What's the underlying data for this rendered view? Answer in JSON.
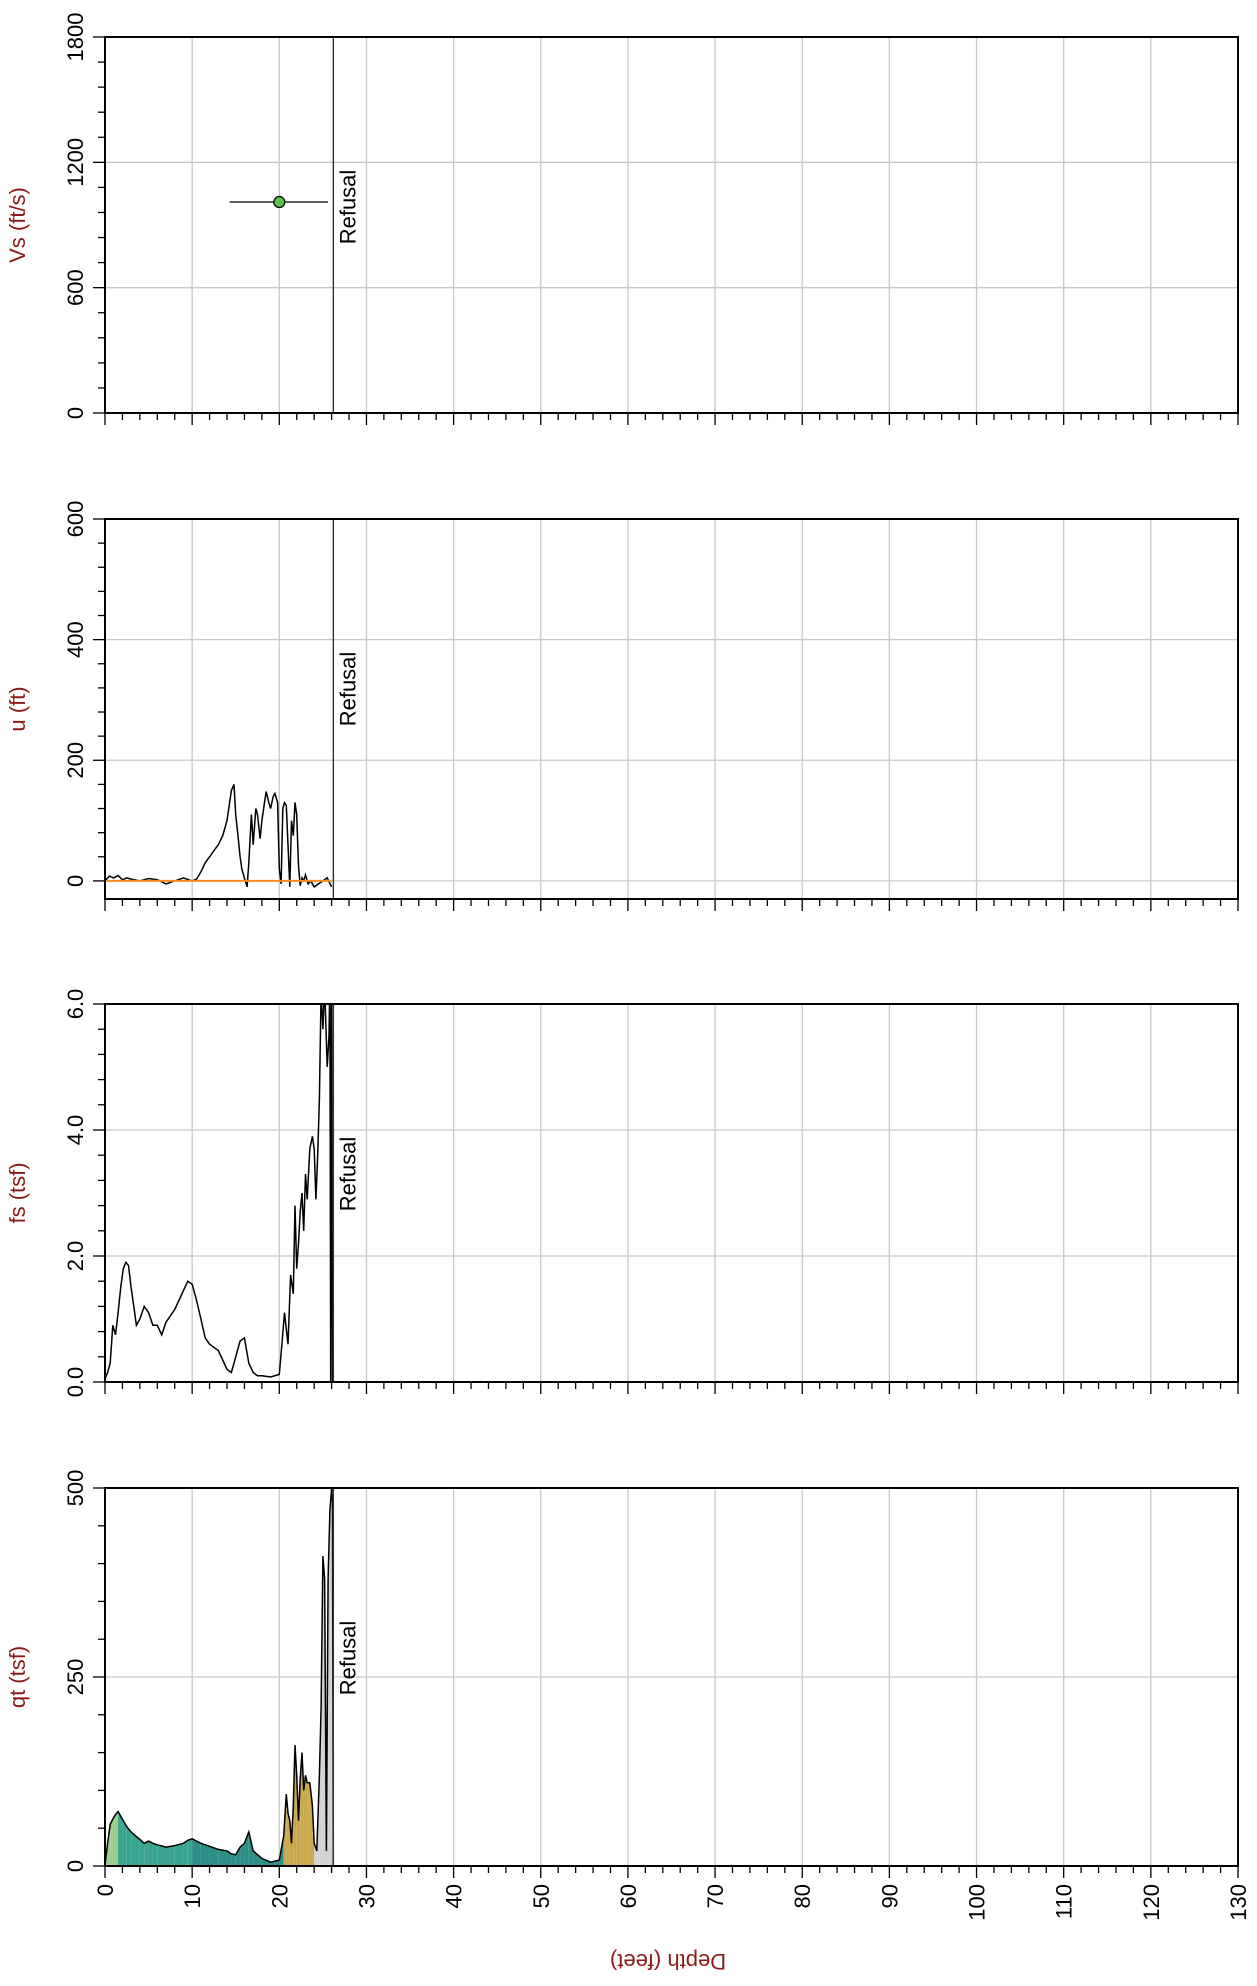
{
  "chart_data": [
    {
      "type": "scatter",
      "ylabel": "Vs (ft/s)",
      "ylim": [
        0,
        1800
      ],
      "yticks": [
        "0",
        "600",
        "1200",
        "1800"
      ],
      "xlim": [
        0,
        130
      ],
      "grid": true,
      "points": [
        {
          "x": 20,
          "y": 1010,
          "x_err": [
            14.3,
            25.6
          ]
        }
      ],
      "point_color": "#5cbf4a",
      "refusal": {
        "x": 26.2,
        "label": "Refusal"
      }
    },
    {
      "type": "line",
      "ylabel": "u (ft)",
      "ylim": [
        -30,
        600
      ],
      "yticks": [
        "0",
        "200",
        "400",
        "600"
      ],
      "xlim": [
        0,
        130
      ],
      "grid": true,
      "series": [
        {
          "color": "#000000",
          "x": [
            0,
            0.5,
            1,
            1.5,
            2,
            2.5,
            3,
            4,
            5,
            6,
            7,
            8,
            9,
            10,
            10.5,
            11,
            11.5,
            12,
            12.5,
            13,
            13.5,
            14,
            14.5,
            14.8,
            15,
            15.3,
            15.5,
            15.7,
            16,
            16.3,
            16.5,
            16.8,
            17,
            17.3,
            17.5,
            17.8,
            18,
            18.3,
            18.5,
            18.8,
            19,
            19.3,
            19.5,
            19.8,
            20,
            20.2,
            20.4,
            20.6,
            20.8,
            21,
            21.2,
            21.4,
            21.6,
            21.8,
            22,
            22.2,
            22.4,
            22.6,
            22.8,
            23,
            23.3,
            23.6,
            24,
            24.5,
            25,
            25.5,
            26
          ],
          "y": [
            0,
            8,
            5,
            9,
            2,
            5,
            3,
            0,
            4,
            2,
            -5,
            0,
            5,
            0,
            3,
            15,
            30,
            40,
            50,
            60,
            75,
            100,
            150,
            160,
            110,
            70,
            40,
            20,
            5,
            -10,
            30,
            110,
            60,
            120,
            110,
            70,
            100,
            130,
            148,
            130,
            120,
            140,
            145,
            130,
            20,
            -5,
            120,
            130,
            125,
            60,
            -10,
            100,
            75,
            130,
            110,
            25,
            -8,
            5,
            0,
            10,
            -5,
            0,
            -10,
            -5,
            0,
            5,
            -10
          ]
        },
        {
          "color": "#f28c28",
          "x": [
            0,
            26
          ],
          "y": [
            0,
            0
          ]
        }
      ],
      "refusal": {
        "x": 26.2,
        "label": "Refusal"
      }
    },
    {
      "type": "line",
      "ylabel": "fs (tsf)",
      "ylim": [
        0,
        6
      ],
      "yticks": [
        "0.0",
        "2.0",
        "4.0",
        "6.0"
      ],
      "xlim": [
        0,
        130
      ],
      "grid": true,
      "series": [
        {
          "color": "#000000",
          "x": [
            0,
            0.3,
            0.6,
            0.9,
            1.2,
            1.5,
            1.8,
            2.1,
            2.4,
            2.7,
            3,
            3.3,
            3.6,
            4,
            4.5,
            5,
            5.5,
            6,
            6.5,
            7,
            7.5,
            8,
            8.5,
            9,
            9.5,
            10,
            10.5,
            11,
            11.5,
            12,
            12.5,
            13,
            13.5,
            14,
            14.5,
            15,
            15.5,
            16,
            16.5,
            17,
            17.5,
            18,
            19,
            20,
            20.3,
            20.6,
            21,
            21.3,
            21.6,
            21.8,
            22,
            22.2,
            22.4,
            22.6,
            22.8,
            23,
            23.2,
            23.5,
            23.8,
            24,
            24.2,
            24.4,
            24.6,
            24.8,
            25,
            25.2,
            25.5,
            25.7,
            25.8,
            25.9,
            26,
            26.1
          ],
          "y": [
            0.05,
            0.15,
            0.3,
            0.9,
            0.75,
            1.1,
            1.5,
            1.8,
            1.9,
            1.85,
            1.5,
            1.2,
            0.9,
            1.0,
            1.2,
            1.1,
            0.9,
            0.9,
            0.75,
            0.95,
            1.05,
            1.15,
            1.3,
            1.45,
            1.6,
            1.55,
            1.3,
            1.0,
            0.7,
            0.6,
            0.55,
            0.5,
            0.35,
            0.2,
            0.15,
            0.4,
            0.65,
            0.7,
            0.3,
            0.15,
            0.1,
            0.1,
            0.08,
            0.12,
            0.6,
            1.1,
            0.6,
            1.7,
            1.4,
            2.8,
            1.8,
            2.2,
            2.7,
            3.0,
            2.4,
            3.3,
            2.9,
            3.7,
            3.9,
            3.7,
            2.9,
            3.6,
            4.5,
            6.2,
            5.6,
            6.3,
            5.0,
            5.5,
            6.4,
            0.0,
            6.2,
            0.0
          ]
        }
      ],
      "refusal": {
        "x": 26.2,
        "label": "Refusal"
      }
    },
    {
      "type": "area",
      "ylabel": "qt (tsf)",
      "xlabel": "Depth (feet)",
      "ylim": [
        0,
        500
      ],
      "yticks": [
        "0",
        "250",
        "500"
      ],
      "xlim": [
        0,
        130
      ],
      "xticks": [
        "0",
        "10",
        "20",
        "30",
        "40",
        "50",
        "60",
        "70",
        "80",
        "90",
        "100",
        "110",
        "120",
        "130"
      ],
      "grid": true,
      "series": [
        {
          "color": "#000000",
          "fill_colors": [
            "#9ccc8a",
            "#3aa58f",
            "#2e8f86",
            "#c8a74d",
            "#d2d2d2"
          ],
          "x": [
            0,
            0.3,
            0.6,
            0.9,
            1.2,
            1.5,
            2,
            2.5,
            3,
            3.5,
            4,
            4.5,
            5,
            5.5,
            6,
            7,
            8,
            9,
            9.5,
            10,
            10.5,
            11,
            12,
            13,
            14,
            14.5,
            15,
            15.5,
            16,
            16.5,
            17,
            18,
            19,
            20,
            20.5,
            20.8,
            21,
            21.2,
            21.4,
            21.6,
            21.8,
            22,
            22.2,
            22.4,
            22.6,
            22.8,
            23,
            23.2,
            23.5,
            23.8,
            24,
            24.3,
            24.6,
            24.8,
            25,
            25.2,
            25.4,
            25.6,
            25.8,
            26,
            26.1,
            26.2
          ],
          "y": [
            2,
            30,
            55,
            62,
            68,
            72,
            62,
            52,
            45,
            40,
            35,
            30,
            33,
            30,
            28,
            25,
            27,
            30,
            34,
            36,
            33,
            30,
            26,
            22,
            20,
            16,
            15,
            25,
            30,
            45,
            20,
            10,
            5,
            8,
            40,
            95,
            70,
            60,
            30,
            80,
            160,
            120,
            60,
            115,
            150,
            100,
            120,
            110,
            110,
            80,
            30,
            20,
            120,
            210,
            410,
            380,
            20,
            380,
            470,
            500,
            480,
            0
          ]
        }
      ],
      "refusal": {
        "x": 26.2,
        "label": "Refusal"
      }
    }
  ]
}
